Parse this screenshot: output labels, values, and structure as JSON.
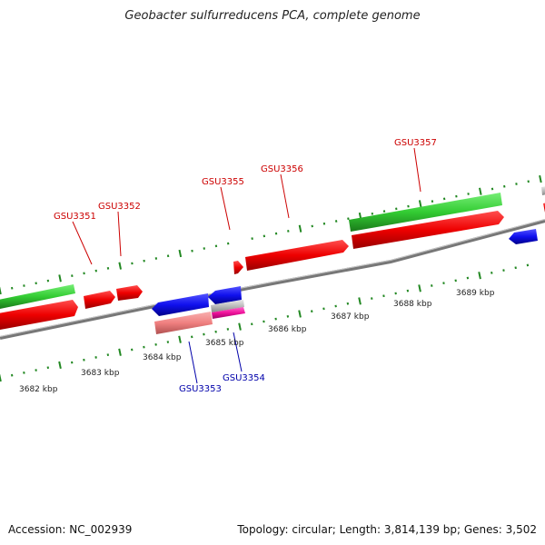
{
  "title": "Geobacter sulfurreducens PCA, complete genome",
  "footer": {
    "accession": "Accession: NC_002939",
    "summary": "Topology: circular; Length: 3,814,139 bp; Genes: 3,502"
  },
  "colors": {
    "forward_gene": "#ff0000",
    "reverse_gene": "#1010ee",
    "rna_feature": "#33cc33",
    "pseudo_gene": "#f08080",
    "misc_feature": "#ee1199",
    "backbone": "#888888",
    "tick": "#228822",
    "forward_label": "#cc0000",
    "reverse_label": "#0000aa"
  },
  "scale_labels": [
    "3682 kbp",
    "3683 kbp",
    "3684 kbp",
    "3685 kbp",
    "3686 kbp",
    "3687 kbp",
    "3688 kbp",
    "3689 kbp"
  ],
  "gene_labels": [
    {
      "name": "GSU3351",
      "strand": "forward"
    },
    {
      "name": "GSU3352",
      "strand": "forward"
    },
    {
      "name": "GSU3355",
      "strand": "forward"
    },
    {
      "name": "GSU3356",
      "strand": "forward"
    },
    {
      "name": "GSU3357",
      "strand": "forward"
    },
    {
      "name": "GSU3353",
      "strand": "reverse"
    },
    {
      "name": "GSU3354",
      "strand": "reverse"
    }
  ]
}
